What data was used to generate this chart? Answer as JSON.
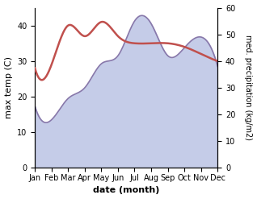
{
  "months": [
    "Jan",
    "Feb",
    "Mar",
    "Apr",
    "May",
    "Jun",
    "Jul",
    "Aug",
    "Sep",
    "Oct",
    "Nov",
    "Dec"
  ],
  "month_x": [
    1,
    2,
    3,
    4,
    5,
    6,
    7,
    8,
    9,
    10,
    11,
    12
  ],
  "temp_max": [
    28,
    29,
    40,
    37,
    41,
    37,
    35,
    35,
    35,
    34,
    32,
    30
  ],
  "precipitation": [
    23,
    18,
    26,
    30,
    39,
    42,
    55,
    54,
    42,
    45,
    49,
    38
  ],
  "temp_color": "#c0504d",
  "precip_color": "#8878aa",
  "precip_fill_color": "#c5cce8",
  "ylim_temp": [
    0,
    45
  ],
  "ylim_precip": [
    0,
    60
  ],
  "xlabel": "date (month)",
  "ylabel_left": "max temp (C)",
  "ylabel_right": "med. precipitation (kg/m2)",
  "bg_color": "#ffffff",
  "label_fontsize": 8,
  "tick_fontsize": 7
}
